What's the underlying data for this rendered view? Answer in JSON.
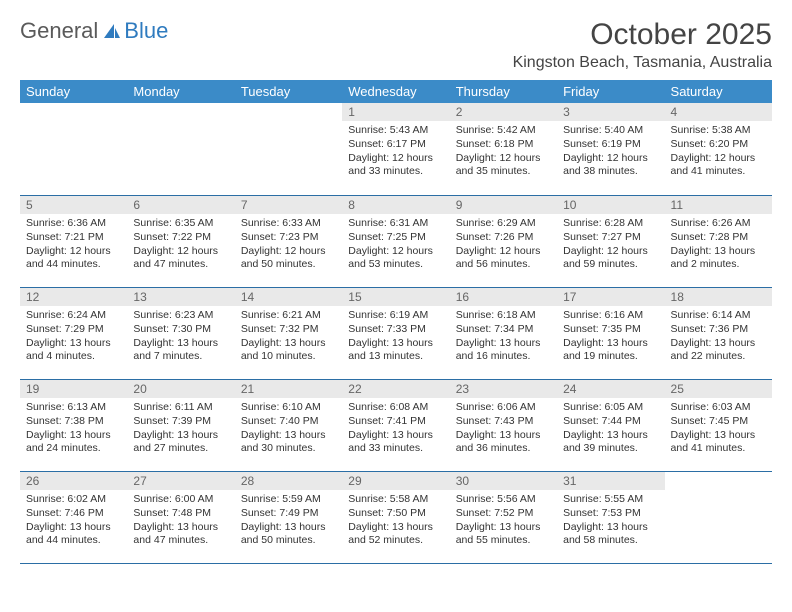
{
  "brand": {
    "part1": "General",
    "part2": "Blue"
  },
  "title": "October 2025",
  "location": "Kingston Beach, Tasmania, Australia",
  "colors": {
    "header_bg": "#3b8bc8",
    "header_text": "#ffffff",
    "daynum_bg": "#e9e9e9",
    "daynum_text": "#666666",
    "cell_border": "#2b6ea5",
    "body_text": "#333333"
  },
  "dow": [
    "Sunday",
    "Monday",
    "Tuesday",
    "Wednesday",
    "Thursday",
    "Friday",
    "Saturday"
  ],
  "labels": {
    "sunrise": "Sunrise:",
    "sunset": "Sunset:",
    "daylight": "Daylight:"
  },
  "first_weekday_index": 3,
  "days": [
    {
      "n": 1,
      "sunrise": "5:43 AM",
      "sunset": "6:17 PM",
      "daylight": "12 hours and 33 minutes."
    },
    {
      "n": 2,
      "sunrise": "5:42 AM",
      "sunset": "6:18 PM",
      "daylight": "12 hours and 35 minutes."
    },
    {
      "n": 3,
      "sunrise": "5:40 AM",
      "sunset": "6:19 PM",
      "daylight": "12 hours and 38 minutes."
    },
    {
      "n": 4,
      "sunrise": "5:38 AM",
      "sunset": "6:20 PM",
      "daylight": "12 hours and 41 minutes."
    },
    {
      "n": 5,
      "sunrise": "6:36 AM",
      "sunset": "7:21 PM",
      "daylight": "12 hours and 44 minutes."
    },
    {
      "n": 6,
      "sunrise": "6:35 AM",
      "sunset": "7:22 PM",
      "daylight": "12 hours and 47 minutes."
    },
    {
      "n": 7,
      "sunrise": "6:33 AM",
      "sunset": "7:23 PM",
      "daylight": "12 hours and 50 minutes."
    },
    {
      "n": 8,
      "sunrise": "6:31 AM",
      "sunset": "7:25 PM",
      "daylight": "12 hours and 53 minutes."
    },
    {
      "n": 9,
      "sunrise": "6:29 AM",
      "sunset": "7:26 PM",
      "daylight": "12 hours and 56 minutes."
    },
    {
      "n": 10,
      "sunrise": "6:28 AM",
      "sunset": "7:27 PM",
      "daylight": "12 hours and 59 minutes."
    },
    {
      "n": 11,
      "sunrise": "6:26 AM",
      "sunset": "7:28 PM",
      "daylight": "13 hours and 2 minutes."
    },
    {
      "n": 12,
      "sunrise": "6:24 AM",
      "sunset": "7:29 PM",
      "daylight": "13 hours and 4 minutes."
    },
    {
      "n": 13,
      "sunrise": "6:23 AM",
      "sunset": "7:30 PM",
      "daylight": "13 hours and 7 minutes."
    },
    {
      "n": 14,
      "sunrise": "6:21 AM",
      "sunset": "7:32 PM",
      "daylight": "13 hours and 10 minutes."
    },
    {
      "n": 15,
      "sunrise": "6:19 AM",
      "sunset": "7:33 PM",
      "daylight": "13 hours and 13 minutes."
    },
    {
      "n": 16,
      "sunrise": "6:18 AM",
      "sunset": "7:34 PM",
      "daylight": "13 hours and 16 minutes."
    },
    {
      "n": 17,
      "sunrise": "6:16 AM",
      "sunset": "7:35 PM",
      "daylight": "13 hours and 19 minutes."
    },
    {
      "n": 18,
      "sunrise": "6:14 AM",
      "sunset": "7:36 PM",
      "daylight": "13 hours and 22 minutes."
    },
    {
      "n": 19,
      "sunrise": "6:13 AM",
      "sunset": "7:38 PM",
      "daylight": "13 hours and 24 minutes."
    },
    {
      "n": 20,
      "sunrise": "6:11 AM",
      "sunset": "7:39 PM",
      "daylight": "13 hours and 27 minutes."
    },
    {
      "n": 21,
      "sunrise": "6:10 AM",
      "sunset": "7:40 PM",
      "daylight": "13 hours and 30 minutes."
    },
    {
      "n": 22,
      "sunrise": "6:08 AM",
      "sunset": "7:41 PM",
      "daylight": "13 hours and 33 minutes."
    },
    {
      "n": 23,
      "sunrise": "6:06 AM",
      "sunset": "7:43 PM",
      "daylight": "13 hours and 36 minutes."
    },
    {
      "n": 24,
      "sunrise": "6:05 AM",
      "sunset": "7:44 PM",
      "daylight": "13 hours and 39 minutes."
    },
    {
      "n": 25,
      "sunrise": "6:03 AM",
      "sunset": "7:45 PM",
      "daylight": "13 hours and 41 minutes."
    },
    {
      "n": 26,
      "sunrise": "6:02 AM",
      "sunset": "7:46 PM",
      "daylight": "13 hours and 44 minutes."
    },
    {
      "n": 27,
      "sunrise": "6:00 AM",
      "sunset": "7:48 PM",
      "daylight": "13 hours and 47 minutes."
    },
    {
      "n": 28,
      "sunrise": "5:59 AM",
      "sunset": "7:49 PM",
      "daylight": "13 hours and 50 minutes."
    },
    {
      "n": 29,
      "sunrise": "5:58 AM",
      "sunset": "7:50 PM",
      "daylight": "13 hours and 52 minutes."
    },
    {
      "n": 30,
      "sunrise": "5:56 AM",
      "sunset": "7:52 PM",
      "daylight": "13 hours and 55 minutes."
    },
    {
      "n": 31,
      "sunrise": "5:55 AM",
      "sunset": "7:53 PM",
      "daylight": "13 hours and 58 minutes."
    }
  ]
}
